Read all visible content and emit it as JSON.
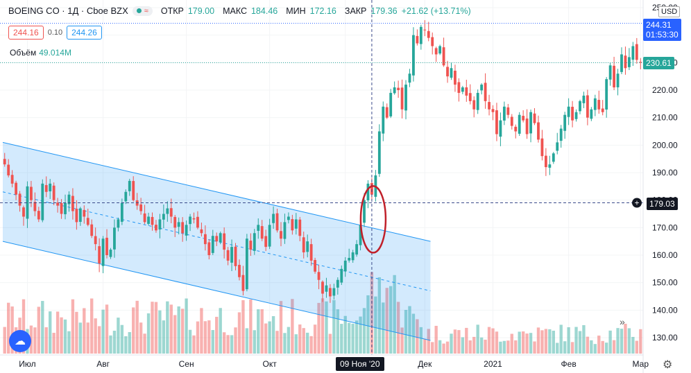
{
  "header": {
    "symbol": "BOEING CO · 1Д · Cboe BZX",
    "open_label": "ОТКР",
    "open": "179.00",
    "high_label": "МАКС",
    "high": "184.46",
    "low_label": "МИН",
    "low": "172.16",
    "close_label": "ЗАКР",
    "close": "179.36",
    "change": "+21.62 (+13.71%)",
    "pill_icon": "wave-icon"
  },
  "quote": {
    "bid": "244.16",
    "spread": "0.10",
    "ask": "244.26"
  },
  "volume": {
    "label": "Объём",
    "value": "49.014M"
  },
  "currency": "USD",
  "current_price": "244.31",
  "countdown": "01:53:30",
  "last_close_tag": "230.61",
  "crosshair": {
    "price": "179.03",
    "date": "09 Ноя '20"
  },
  "chart_data": {
    "type": "candlestick",
    "title": "",
    "y_ticks": [
      130,
      140,
      150,
      160,
      170,
      180,
      190,
      200,
      210,
      220,
      230,
      240,
      250
    ],
    "ylim": [
      124,
      252
    ],
    "x_tick_labels": [
      "Июл",
      "Авг",
      "Сен",
      "Окт",
      "Ноя",
      "Дек",
      "2021",
      "Фев",
      "Мар"
    ],
    "x_tick_index": [
      6,
      26,
      48,
      70,
      90,
      111,
      129,
      149,
      168
    ],
    "crosshair_index": 97,
    "channel": {
      "upper": [
        [
          0,
          201
        ],
        [
          113,
          165
        ]
      ],
      "middle": [
        [
          0,
          183
        ],
        [
          113,
          147
        ]
      ],
      "lower": [
        [
          0,
          165
        ],
        [
          113,
          129
        ]
      ]
    },
    "closes": [
      193,
      189,
      186,
      182,
      178,
      174,
      185,
      180,
      176,
      173,
      186,
      183,
      186,
      180,
      178,
      175,
      179,
      182,
      176,
      172,
      177,
      174,
      171,
      167,
      164,
      157,
      166,
      160,
      162,
      170,
      173,
      179,
      183,
      187,
      180,
      178,
      176,
      172,
      174,
      171,
      169,
      173,
      175,
      177,
      174,
      170,
      172,
      168,
      171,
      174,
      173,
      170,
      168,
      164,
      160,
      167,
      165,
      168,
      162,
      158,
      163,
      156,
      152,
      147,
      166,
      162,
      168,
      171,
      166,
      163,
      171,
      175,
      169,
      166,
      172,
      174,
      169,
      173,
      167,
      161,
      165,
      158,
      154,
      151,
      146,
      149,
      145,
      148,
      151,
      155,
      158,
      159,
      161,
      164,
      171,
      180,
      186,
      182,
      189,
      205,
      214,
      210,
      219,
      221,
      220,
      213,
      222,
      226,
      240,
      237,
      243,
      242,
      239,
      236,
      233,
      236,
      229,
      225,
      228,
      222,
      219,
      221,
      218,
      216,
      213,
      219,
      222,
      216,
      213,
      212,
      204,
      209,
      214,
      211,
      207,
      205,
      211,
      209,
      204,
      212,
      208,
      202,
      196,
      192,
      193,
      197,
      201,
      206,
      211,
      214,
      209,
      212,
      216,
      218,
      210,
      213,
      217,
      213,
      212,
      224,
      229,
      221,
      226,
      233,
      228,
      232,
      236,
      231,
      230
    ],
    "volume_max_px": 135
  }
}
